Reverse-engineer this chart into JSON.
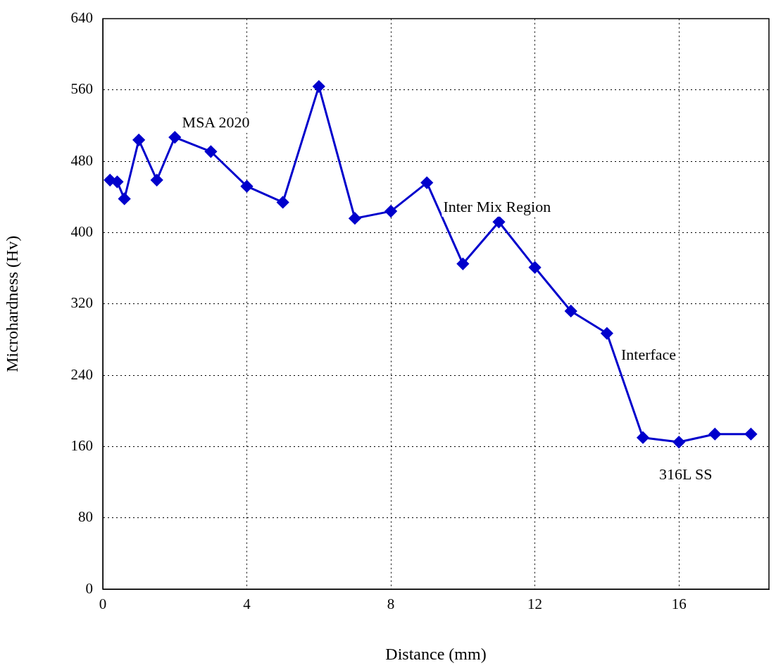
{
  "chart_data": {
    "type": "line",
    "xlabel": "Distance (mm)",
    "ylabel": "Microhardness (Hv)",
    "x": [
      0.2,
      0.4,
      0.6,
      1,
      1.5,
      2,
      3,
      4,
      5,
      6,
      7,
      8,
      9,
      10,
      11,
      12,
      13,
      14,
      15,
      16,
      17,
      18
    ],
    "series": [
      {
        "color": "#0000cc",
        "values": [
          459,
          457,
          438,
          504,
          459,
          507,
          491,
          452,
          434,
          564,
          416,
          424,
          456,
          365,
          412,
          361,
          312,
          287,
          170,
          165,
          174,
          174
        ]
      }
    ],
    "xlim": [
      0,
      18.5
    ],
    "xticks": [
      0,
      4,
      8,
      12,
      16
    ],
    "ylim": [
      0,
      640
    ],
    "yticks": [
      0,
      80,
      160,
      240,
      320,
      400,
      480,
      560,
      640
    ],
    "grid": true,
    "legend": false,
    "marker": "diamond",
    "line_style": "solid",
    "annotations": [
      "MSA 2020",
      "Inter Mix Region",
      "Interface",
      "316L SS"
    ]
  }
}
